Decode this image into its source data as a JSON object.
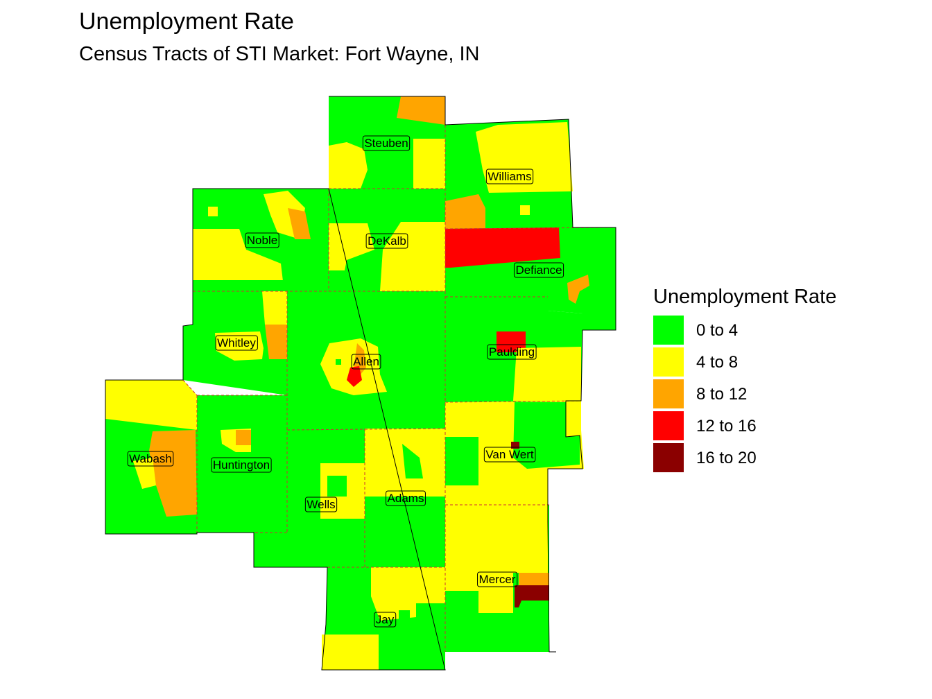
{
  "title": "Unemployment Rate",
  "subtitle": "Census Tracts of STI Market: Fort Wayne, IN",
  "legend": {
    "title": "Unemployment Rate",
    "items": [
      {
        "label": "0 to 4",
        "color": "#00ff00"
      },
      {
        "label": "4 to 8",
        "color": "#ffff00"
      },
      {
        "label": "8 to 12",
        "color": "#ffa500"
      },
      {
        "label": "12 to 16",
        "color": "#ff0000"
      },
      {
        "label": "16 to 20",
        "color": "#8b0000"
      }
    ]
  },
  "counties": [
    {
      "name": "Steuben"
    },
    {
      "name": "Williams"
    },
    {
      "name": "Noble"
    },
    {
      "name": "DeKalb"
    },
    {
      "name": "Defiance"
    },
    {
      "name": "Whitley"
    },
    {
      "name": "Allen"
    },
    {
      "name": "Paulding"
    },
    {
      "name": "Wabash"
    },
    {
      "name": "Huntington"
    },
    {
      "name": "Van Wert"
    },
    {
      "name": "Wells"
    },
    {
      "name": "Adams"
    },
    {
      "name": "Mercer"
    },
    {
      "name": "Jay"
    }
  ]
}
